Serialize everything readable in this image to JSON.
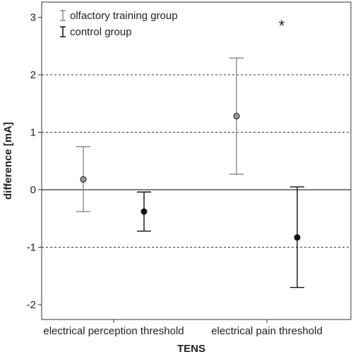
{
  "chart_data": {
    "type": "scatter",
    "subtype": "error-bar-point",
    "categories": [
      "electrical perception threshold",
      "electrical pain threshold"
    ],
    "xlabel": "TENS",
    "ylabel": "difference [mA]",
    "ylim": [
      -2.3,
      3.3
    ],
    "yticks": [
      -2,
      -1,
      0,
      1,
      2,
      3
    ],
    "ytick_labels": [
      "-2",
      "-1",
      "0",
      "1",
      "2",
      "3"
    ],
    "grid": "dotted horizontal at 2, 1, -1; solid line at 0",
    "legend_position": "top-left",
    "series": [
      {
        "name": "olfactory training group",
        "color": "#8a8a8a",
        "marker_fill": "#9a9a9a",
        "points": [
          {
            "category": "electrical perception threshold",
            "mean": 0.18,
            "lower": -0.38,
            "upper": 0.75
          },
          {
            "category": "electrical pain threshold",
            "mean": 1.28,
            "lower": 0.27,
            "upper": 2.29
          }
        ]
      },
      {
        "name": "control group",
        "color": "#111111",
        "marker_fill": "#111111",
        "points": [
          {
            "category": "electrical perception threshold",
            "mean": -0.38,
            "lower": -0.72,
            "upper": -0.04
          },
          {
            "category": "electrical pain threshold",
            "mean": -0.83,
            "lower": -1.7,
            "upper": 0.05
          }
        ]
      }
    ],
    "annotations": [
      {
        "text": "*",
        "category": "electrical pain threshold",
        "y": 2.9
      }
    ]
  }
}
